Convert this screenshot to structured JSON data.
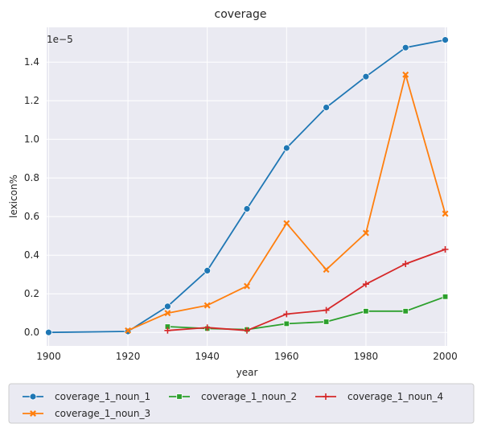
{
  "chart_data": {
    "type": "line",
    "title": "coverage",
    "xlabel": "year",
    "ylabel": "lexicon%",
    "offset_text": "1e−5",
    "x_ticks": [
      "1900",
      "1920",
      "1940",
      "1960",
      "1980",
      "2000"
    ],
    "y_ticks": [
      "0.0",
      "0.2",
      "0.4",
      "0.6",
      "0.8",
      "1.0",
      "1.2",
      "1.4"
    ],
    "xlim": [
      1899.5,
      2000.5
    ],
    "ylim": [
      -0.07,
      1.58
    ],
    "grid": true,
    "legend_position": "bottom",
    "series": [
      {
        "name": "coverage_1_noun_1",
        "color": "#1f77b4",
        "marker": "circle",
        "x": [
          1900,
          1920,
          1930,
          1940,
          1950,
          1960,
          1970,
          1980,
          1990,
          2000
        ],
        "y": [
          0.0,
          0.005,
          0.135,
          0.32,
          0.64,
          0.955,
          1.165,
          1.325,
          1.475,
          1.515
        ]
      },
      {
        "name": "coverage_1_noun_3",
        "color": "#ff7f0e",
        "marker": "x",
        "x": [
          1920,
          1930,
          1940,
          1950,
          1960,
          1970,
          1980,
          1990,
          2000
        ],
        "y": [
          0.01,
          0.1,
          0.14,
          0.24,
          0.565,
          0.325,
          0.515,
          1.335,
          0.615
        ]
      },
      {
        "name": "coverage_1_noun_2",
        "color": "#2ca02c",
        "marker": "square",
        "x": [
          1930,
          1940,
          1950,
          1960,
          1970,
          1980,
          1990,
          2000
        ],
        "y": [
          0.03,
          0.02,
          0.015,
          0.045,
          0.055,
          0.11,
          0.11,
          0.185
        ]
      },
      {
        "name": "coverage_1_noun_4",
        "color": "#d62728",
        "marker": "plus",
        "x": [
          1930,
          1940,
          1950,
          1960,
          1970,
          1980,
          1990,
          2000
        ],
        "y": [
          0.01,
          0.025,
          0.01,
          0.095,
          0.115,
          0.25,
          0.355,
          0.43
        ]
      }
    ]
  }
}
